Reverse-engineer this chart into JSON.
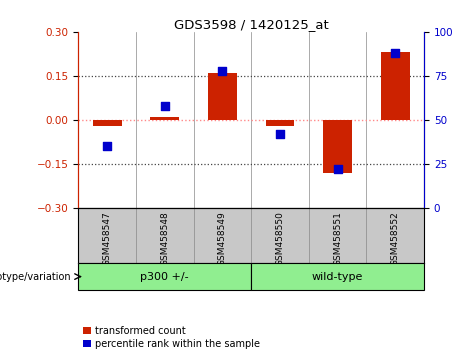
{
  "title": "GDS3598 / 1420125_at",
  "samples": [
    "GSM458547",
    "GSM458548",
    "GSM458549",
    "GSM458550",
    "GSM458551",
    "GSM458552"
  ],
  "transformed_counts": [
    -0.02,
    0.01,
    0.16,
    -0.02,
    -0.18,
    0.23
  ],
  "percentile_ranks": [
    35,
    58,
    78,
    42,
    22,
    88
  ],
  "group1_name": "p300 +/-",
  "group1_indices": [
    0,
    1,
    2
  ],
  "group2_name": "wild-type",
  "group2_indices": [
    3,
    4,
    5
  ],
  "group_color": "#90EE90",
  "ylim_left": [
    -0.3,
    0.3
  ],
  "ylim_right": [
    0,
    100
  ],
  "yticks_left": [
    -0.3,
    -0.15,
    0,
    0.15,
    0.3
  ],
  "yticks_right": [
    0,
    25,
    50,
    75,
    100
  ],
  "bar_color": "#CC2200",
  "dot_color": "#0000CC",
  "legend_bar_label": "transformed count",
  "legend_dot_label": "percentile rank within the sample",
  "genotype_label": "genotype/variation",
  "background_color": "#ffffff",
  "xlabels_bg": "#C8C8C8",
  "zero_line_color": "#FF8888",
  "dotted_line_color": "#444444",
  "left_axis_color": "#CC2200",
  "right_axis_color": "#0000CC"
}
